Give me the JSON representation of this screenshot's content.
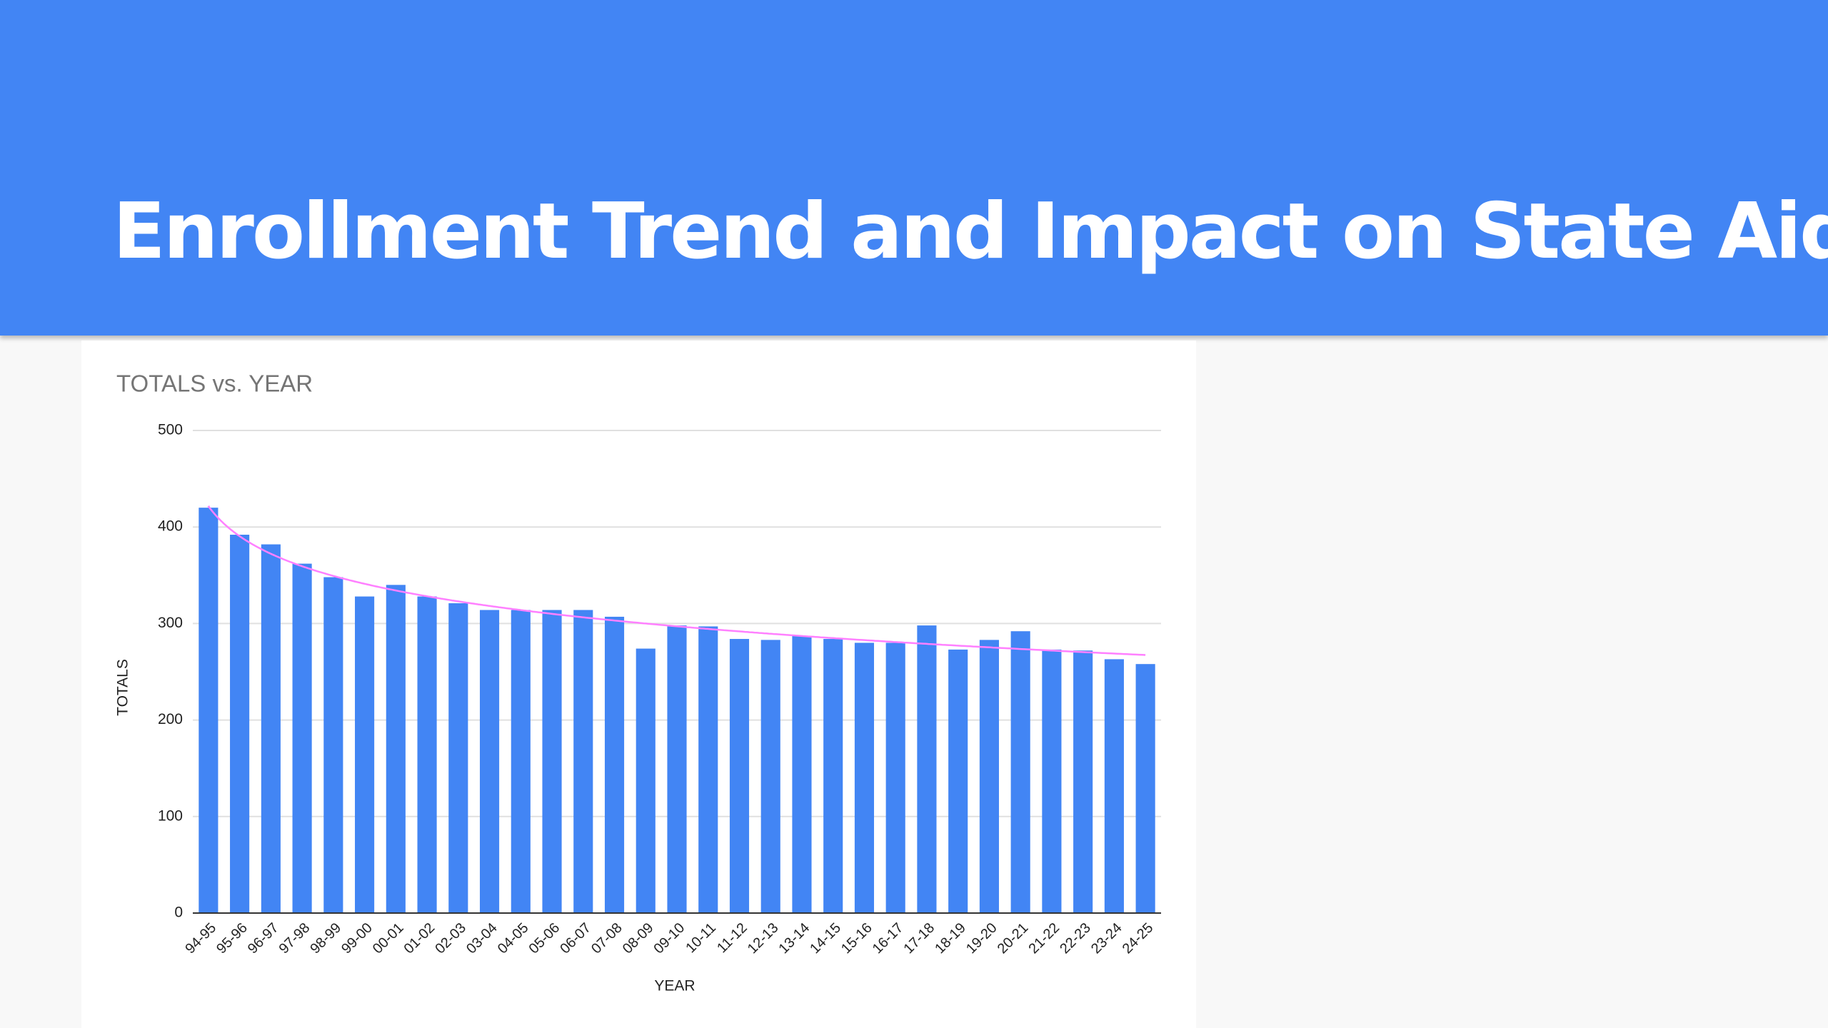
{
  "slide_title": "Enrollment Trend and Impact on State Aid",
  "chart_data": {
    "type": "bar",
    "title": "TOTALS vs. YEAR",
    "x_label": "YEAR",
    "y_label": "TOTALS",
    "categories": [
      "94-95",
      "95-96",
      "96-97",
      "97-98",
      "98-99",
      "99-00",
      "00-01",
      "01-02",
      "02-03",
      "03-04",
      "04-05",
      "05-06",
      "06-07",
      "07-08",
      "08-09",
      "09-10",
      "10-11",
      "11-12",
      "12-13",
      "13-14",
      "14-15",
      "15-16",
      "16-17",
      "17-18",
      "18-19",
      "19-20",
      "20-21",
      "21-22",
      "22-23",
      "23-24",
      "24-25"
    ],
    "values": [
      420,
      392,
      382,
      362,
      348,
      328,
      340,
      328,
      321,
      314,
      314,
      314,
      314,
      307,
      274,
      298,
      297,
      284,
      283,
      287,
      284,
      280,
      280,
      298,
      273,
      283,
      292,
      273,
      272,
      263,
      258
    ],
    "color": "#4285f4",
    "trendline": {
      "type": "logarithmic",
      "color": "#ff80ff"
    },
    "ylim": [
      0,
      500
    ],
    "yticks": [
      0,
      100,
      200,
      300,
      400,
      500
    ],
    "grid": true
  }
}
